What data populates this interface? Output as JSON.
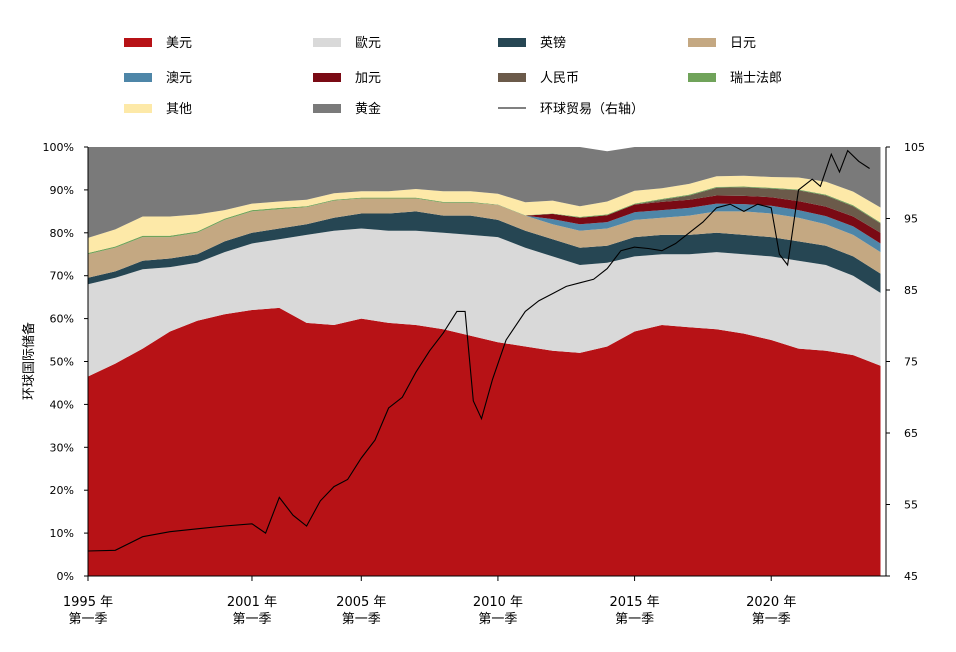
{
  "chart_data": {
    "type": "area",
    "subtype": "stacked-area-with-line",
    "ylabel": "环球国际储备",
    "y_left_ticks": [
      "0%",
      "10%",
      "20%",
      "30%",
      "40%",
      "50%",
      "60%",
      "70%",
      "80%",
      "90%",
      "100%"
    ],
    "y_right_ticks": [
      "45",
      "55",
      "65",
      "75",
      "85",
      "95",
      "105"
    ],
    "ylim_left": [
      0,
      100
    ],
    "ylim_right": [
      45,
      105
    ],
    "x_ticks": [
      {
        "year": "1995 年",
        "quarter": "第一季",
        "x": 1995.0
      },
      {
        "year": "2001 年",
        "quarter": "第一季",
        "x": 2001.0
      },
      {
        "year": "2005 年",
        "quarter": "第一季",
        "x": 2005.0
      },
      {
        "year": "2010 年",
        "quarter": "第一季",
        "x": 2010.0
      },
      {
        "year": "2015 年",
        "quarter": "第一季",
        "x": 2015.0
      },
      {
        "year": "2020 年",
        "quarter": "第一季",
        "x": 2020.0
      }
    ],
    "x": [
      1995,
      1996,
      1997,
      1998,
      1999,
      2000,
      2001,
      2002,
      2003,
      2004,
      2005,
      2006,
      2007,
      2008,
      2009,
      2010,
      2011,
      2012,
      2013,
      2014,
      2015,
      2016,
      2017,
      2018,
      2019,
      2020,
      2021,
      2022,
      2023,
      2024
    ],
    "series": [
      {
        "name": "美元",
        "color": "#b71216",
        "values": [
          46.5,
          49.5,
          53.0,
          57.0,
          59.5,
          61.0,
          62.0,
          62.5,
          59.0,
          58.5,
          60.0,
          59.0,
          58.5,
          57.5,
          56.0,
          54.5,
          53.5,
          52.5,
          52.0,
          53.5,
          57.0,
          58.5,
          58.0,
          57.5,
          56.5,
          55.0,
          53.0,
          52.5,
          51.5,
          49.0
        ]
      },
      {
        "name": "歐元",
        "color": "#d9d9d9",
        "values": [
          21.5,
          20.0,
          18.5,
          15.0,
          13.5,
          14.5,
          15.5,
          16.0,
          20.5,
          22.0,
          21.0,
          21.5,
          22.0,
          22.5,
          23.5,
          24.5,
          23.0,
          22.0,
          20.5,
          19.5,
          17.5,
          16.5,
          17.0,
          18.0,
          18.5,
          19.5,
          20.5,
          20.0,
          18.5,
          17.0
        ]
      },
      {
        "name": "英镑",
        "color": "#264653",
        "values": [
          1.5,
          1.5,
          2.0,
          2.0,
          2.0,
          2.5,
          2.5,
          2.5,
          2.5,
          3.0,
          3.5,
          4.0,
          4.5,
          4.0,
          4.5,
          4.0,
          4.0,
          4.0,
          4.0,
          4.0,
          4.5,
          4.5,
          4.5,
          4.5,
          4.5,
          4.5,
          4.5,
          4.5,
          4.5,
          4.5
        ]
      },
      {
        "name": "日元",
        "color": "#c4a882",
        "values": [
          5.5,
          5.5,
          5.5,
          5.0,
          5.0,
          5.0,
          5.0,
          4.5,
          4.0,
          4.0,
          3.5,
          3.5,
          3.0,
          3.0,
          3.0,
          3.5,
          3.5,
          3.5,
          4.0,
          4.0,
          4.0,
          4.0,
          4.5,
          5.0,
          5.5,
          5.5,
          5.5,
          5.0,
          5.0,
          5.0
        ]
      },
      {
        "name": "澳元",
        "color": "#4e86a8",
        "values": [
          0,
          0,
          0,
          0,
          0,
          0,
          0,
          0,
          0,
          0,
          0,
          0,
          0,
          0,
          0,
          0,
          0,
          1.2,
          1.5,
          1.5,
          1.8,
          1.8,
          1.8,
          1.8,
          1.7,
          1.8,
          1.8,
          1.9,
          2.0,
          2.0
        ]
      },
      {
        "name": "加元",
        "color": "#7a0a14",
        "values": [
          0,
          0,
          0,
          0,
          0,
          0,
          0,
          0,
          0,
          0,
          0,
          0,
          0,
          0,
          0,
          0,
          0,
          1.2,
          1.5,
          1.6,
          1.8,
          1.9,
          1.9,
          1.9,
          1.9,
          2.0,
          2.1,
          2.2,
          2.3,
          2.5
        ]
      },
      {
        "name": "人民币",
        "color": "#6b5a4a",
        "values": [
          0,
          0,
          0,
          0,
          0,
          0,
          0,
          0,
          0,
          0,
          0,
          0,
          0,
          0,
          0,
          0,
          0,
          0,
          0,
          0,
          0,
          0.5,
          1.0,
          1.8,
          2.0,
          2.0,
          2.5,
          2.6,
          2.4,
          2.2
        ]
      },
      {
        "name": "瑞士法郎",
        "color": "#70a35a",
        "values": [
          0.3,
          0.3,
          0.3,
          0.3,
          0.3,
          0.3,
          0.3,
          0.3,
          0.2,
          0.2,
          0.2,
          0.2,
          0.2,
          0.2,
          0.2,
          0.1,
          0.1,
          0.1,
          0.2,
          0.2,
          0.2,
          0.2,
          0.2,
          0.2,
          0.2,
          0.2,
          0.2,
          0.2,
          0.2,
          0.2
        ]
      },
      {
        "name": "其他",
        "color": "#fde9a8",
        "values": [
          3.5,
          4.0,
          4.5,
          4.5,
          4.0,
          2.0,
          1.5,
          1.5,
          1.5,
          1.5,
          1.5,
          1.5,
          2.0,
          2.5,
          2.5,
          2.5,
          3.0,
          3.0,
          2.5,
          3.0,
          3.0,
          2.5,
          2.5,
          2.5,
          2.5,
          2.5,
          2.8,
          3.0,
          3.2,
          3.5
        ]
      },
      {
        "name": "黄金",
        "color": "#7a7a7a",
        "values": [
          21.2,
          19.2,
          16.2,
          16.2,
          15.7,
          14.7,
          13.2,
          12.7,
          12.3,
          10.8,
          10.3,
          10.3,
          9.8,
          10.3,
          10.3,
          10.9,
          12.9,
          12.5,
          13.8,
          11.7,
          10.2,
          9.6,
          8.6,
          6.8,
          6.7,
          7.0,
          7.1,
          8.1,
          10.4,
          14.1
        ]
      }
    ],
    "line": {
      "name": "环球贸易（右轴）",
      "color": "#000000",
      "axis": "right",
      "x": [
        1995,
        1996,
        1997,
        1998,
        1999,
        2000,
        2001,
        2001.5,
        2002,
        2002.5,
        2003,
        2003.5,
        2004,
        2004.5,
        2005,
        2005.5,
        2006,
        2006.5,
        2007,
        2007.5,
        2008,
        2008.5,
        2008.8,
        2009.1,
        2009.4,
        2009.8,
        2010.3,
        2011,
        2011.5,
        2012,
        2012.5,
        2013,
        2013.5,
        2014,
        2014.5,
        2015,
        2015.5,
        2016,
        2016.5,
        2017,
        2017.5,
        2018,
        2018.5,
        2019,
        2019.5,
        2020,
        2020.3,
        2020.6,
        2021,
        2021.5,
        2021.8,
        2022.2,
        2022.5,
        2022.8,
        2023.2,
        2023.6
      ],
      "values": [
        48.5,
        48.6,
        50.5,
        51.2,
        51.6,
        52.0,
        52.3,
        51.0,
        56.0,
        53.5,
        52.0,
        55.5,
        57.5,
        58.5,
        61.5,
        64.0,
        68.5,
        70.0,
        73.5,
        76.5,
        79.0,
        82.0,
        82.0,
        69.5,
        67.0,
        72.5,
        78.0,
        82.0,
        83.5,
        84.5,
        85.5,
        86.0,
        86.5,
        88.0,
        90.5,
        91.0,
        90.8,
        90.5,
        91.5,
        93.0,
        94.5,
        96.5,
        97.0,
        96.0,
        97.0,
        96.5,
        90.0,
        88.5,
        99.0,
        100.5,
        99.5,
        104.0,
        101.5,
        104.5,
        103.0,
        102.0
      ]
    }
  }
}
